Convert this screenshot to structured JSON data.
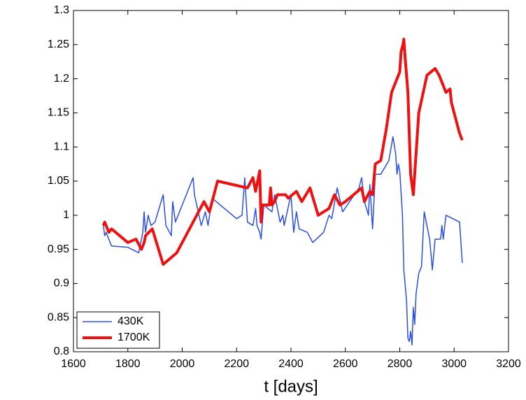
{
  "chart_data": {
    "type": "line",
    "xlabel": "t [days]",
    "xlim": [
      1600,
      3200
    ],
    "xticks": [
      1600,
      1800,
      2000,
      2200,
      2400,
      2600,
      2800,
      3000,
      3200
    ],
    "ylim": [
      0.8,
      1.3
    ],
    "yticks": [
      0.8,
      0.85,
      0.9,
      0.95,
      1,
      1.05,
      1.1,
      1.15,
      1.2,
      1.25,
      1.3
    ],
    "legend": "lower left",
    "series": [
      {
        "name": "430K",
        "color": "#2b4ee6",
        "x": [
          1710,
          1715,
          1720,
          1730,
          1740,
          1800,
          1840,
          1855,
          1860,
          1865,
          1875,
          1885,
          1900,
          1930,
          1940,
          1960,
          1965,
          1975,
          2040,
          2045,
          2070,
          2085,
          2095,
          2110,
          2200,
          2220,
          2230,
          2240,
          2260,
          2270,
          2275,
          2285,
          2290,
          2300,
          2330,
          2340,
          2360,
          2370,
          2375,
          2400,
          2410,
          2420,
          2430,
          2460,
          2480,
          2520,
          2540,
          2550,
          2570,
          2590,
          2650,
          2660,
          2670,
          2685,
          2690,
          2700,
          2710,
          2730,
          2760,
          2775,
          2785,
          2790,
          2795,
          2800,
          2810,
          2815,
          2825,
          2830,
          2835,
          2840,
          2845,
          2850,
          2855,
          2860,
          2870,
          2880,
          2890,
          2910,
          2920,
          2930,
          2950,
          2955,
          2960,
          2970,
          3020,
          3030
        ],
        "values": [
          0.985,
          0.97,
          0.975,
          0.965,
          0.955,
          0.953,
          0.945,
          0.975,
          1.005,
          0.975,
          1.0,
          0.985,
          0.99,
          1.03,
          0.985,
          0.97,
          1.02,
          0.99,
          1.055,
          1.03,
          0.985,
          1.005,
          0.985,
          1.025,
          0.995,
          1.0,
          1.055,
          0.99,
          0.985,
          1.01,
          0.985,
          0.975,
          0.965,
          1.015,
          1.005,
          1.03,
          0.99,
          1.0,
          0.985,
          1.03,
          0.975,
          1.005,
          0.98,
          0.975,
          0.96,
          0.975,
          1.0,
          0.995,
          1.04,
          1.005,
          1.04,
          1.055,
          1.02,
          1.0,
          1.045,
          0.98,
          1.06,
          1.06,
          1.08,
          1.115,
          1.09,
          1.06,
          1.075,
          1.065,
          1.0,
          0.92,
          0.875,
          0.82,
          0.815,
          0.83,
          0.81,
          0.865,
          0.84,
          0.885,
          0.915,
          0.925,
          1.005,
          0.965,
          0.92,
          0.965,
          0.965,
          0.985,
          0.965,
          1.0,
          0.99,
          0.93
        ]
      },
      {
        "name": "1700K",
        "color": "#ee1111",
        "x": [
          1710,
          1715,
          1730,
          1740,
          1800,
          1830,
          1850,
          1860,
          1865,
          1890,
          1930,
          1980,
          2080,
          2100,
          2130,
          2240,
          2260,
          2270,
          2285,
          2290,
          2295,
          2320,
          2325,
          2330,
          2340,
          2350,
          2380,
          2390,
          2420,
          2440,
          2470,
          2500,
          2540,
          2560,
          2580,
          2600,
          2660,
          2670,
          2690,
          2700,
          2710,
          2730,
          2750,
          2770,
          2800,
          2805,
          2812,
          2815,
          2820,
          2830,
          2840,
          2850,
          2870,
          2900,
          2930,
          2945,
          2950,
          2970,
          2985,
          2990,
          3020,
          3030
        ],
        "values": [
          0.985,
          0.99,
          0.975,
          0.98,
          0.96,
          0.965,
          0.95,
          0.96,
          0.97,
          0.98,
          0.928,
          0.945,
          1.02,
          1.005,
          1.05,
          1.04,
          1.055,
          1.035,
          1.065,
          0.99,
          1.015,
          1.015,
          1.04,
          1.015,
          1.02,
          1.03,
          1.03,
          1.025,
          1.035,
          1.02,
          1.04,
          1.0,
          1.01,
          1.03,
          1.015,
          1.02,
          1.04,
          1.02,
          1.035,
          1.03,
          1.075,
          1.08,
          1.125,
          1.18,
          1.21,
          1.24,
          1.25,
          1.258,
          1.23,
          1.18,
          1.06,
          1.03,
          1.15,
          1.205,
          1.215,
          1.205,
          1.2,
          1.18,
          1.185,
          1.165,
          1.12,
          1.11
        ]
      }
    ]
  }
}
